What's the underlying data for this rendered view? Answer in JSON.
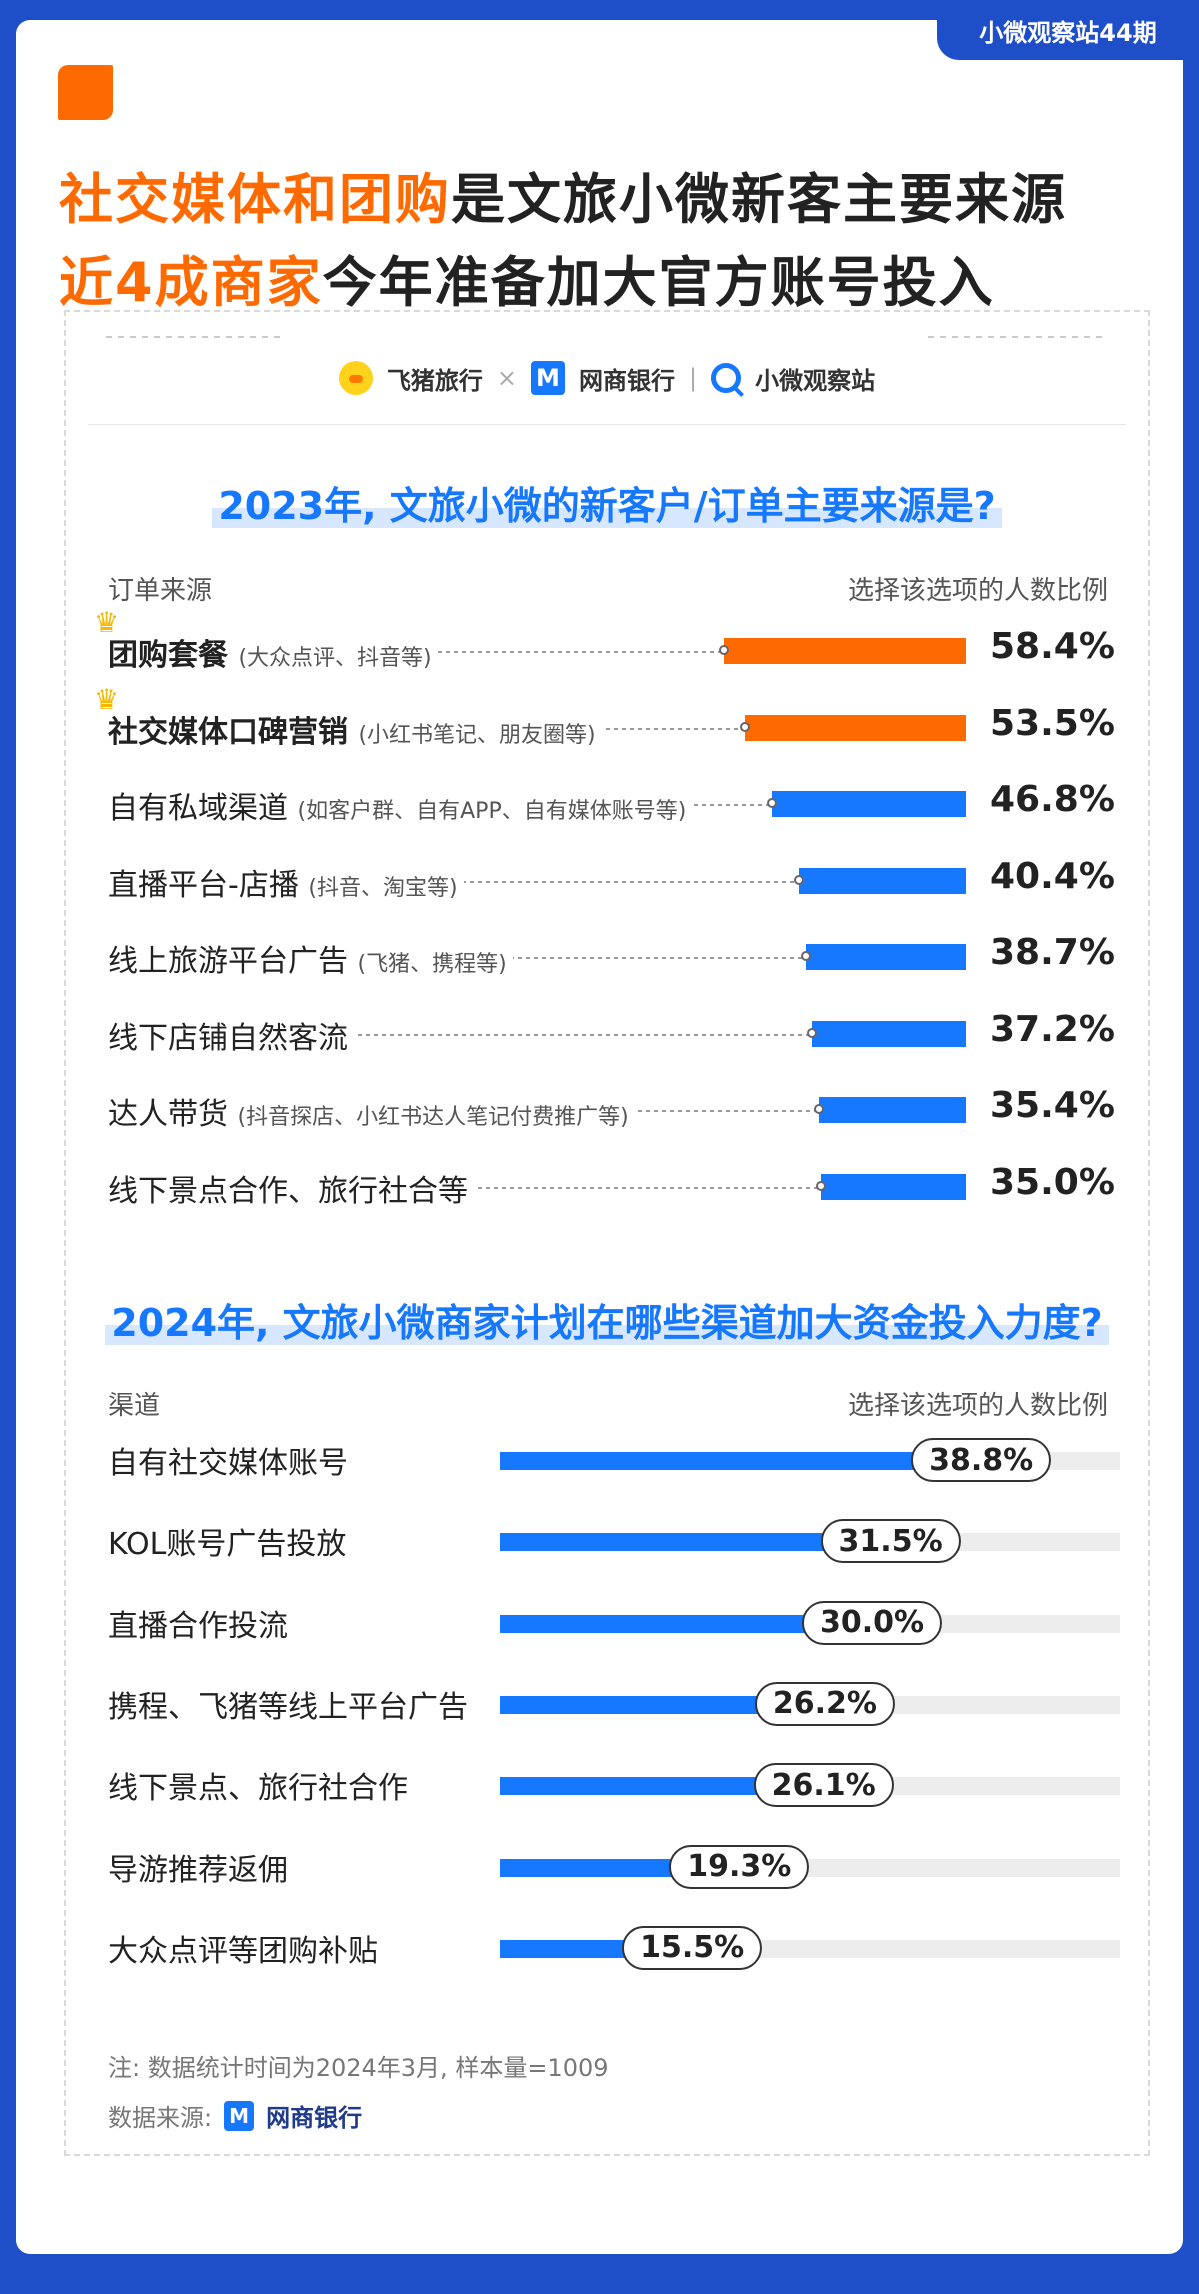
{
  "issue_tag": "小微观察站44期",
  "headline": {
    "line1_highlight": "社交媒体和团购",
    "line1_rest": "是文旅小微新客主要来源",
    "line2_highlight": "近4成商家",
    "line2_rest": "今年准备加大官方账号投入"
  },
  "logos": {
    "fliggy": "飞猪旅行",
    "times": "×",
    "mybank": "网商银行",
    "observer": "小微观察站",
    "separator": "|"
  },
  "colors": {
    "orange": "#ff6a00",
    "blue": "#1677ff",
    "navy": "#1f4fc8",
    "track": "#ededed"
  },
  "chart_data": [
    {
      "type": "bar",
      "title": "2023年, 文旅小微的新客户/订单主要来源是?",
      "xlabel": "选择该选项的人数比例",
      "ylabel": "订单来源",
      "categories": [
        {
          "label": "团购套餐",
          "note": "(大众点评、抖音等)",
          "highlight": true
        },
        {
          "label": "社交媒体口碑营销",
          "note": "(小红书笔记、朋友圈等)",
          "highlight": true
        },
        {
          "label": "自有私域渠道",
          "note": "(如客户群、自有APP、自有媒体账号等)",
          "highlight": false
        },
        {
          "label": "直播平台-店播",
          "note": "(抖音、淘宝等)",
          "highlight": false
        },
        {
          "label": "线上旅游平台广告",
          "note": "(飞猪、携程等)",
          "highlight": false
        },
        {
          "label": "线下店铺自然客流",
          "note": "",
          "highlight": false
        },
        {
          "label": "达人带货",
          "note": "(抖音探店、小红书达人笔记付费推广等)",
          "highlight": false
        },
        {
          "label": "线下景点合作、旅行社合等",
          "note": "",
          "highlight": false
        }
      ],
      "values": [
        58.4,
        53.5,
        46.8,
        40.4,
        38.7,
        37.2,
        35.4,
        35.0
      ],
      "value_labels": [
        "58.4%",
        "53.5%",
        "46.8%",
        "40.4%",
        "38.7%",
        "37.2%",
        "35.4%",
        "35.0%"
      ]
    },
    {
      "type": "bar",
      "title": "2024年, 文旅小微商家计划在哪些渠道加大资金投入力度?",
      "xlabel": "选择该选项的人数比例",
      "ylabel": "渠道",
      "categories": [
        "自有社交媒体账号",
        "KOL账号广告投放",
        "直播合作投流",
        "携程、飞猪等线上平台广告",
        "线下景点、旅行社合作",
        "导游推荐返佣",
        "大众点评等团购补贴"
      ],
      "values": [
        38.8,
        31.5,
        30.0,
        26.2,
        26.1,
        19.3,
        15.5
      ],
      "value_labels": [
        "38.8%",
        "31.5%",
        "30.0%",
        "26.2%",
        "26.1%",
        "19.3%",
        "15.5%"
      ]
    }
  ],
  "footer": {
    "note": "注: 数据统计时间为2024年3月, 样本量=1009",
    "source_label": "数据来源:",
    "source_name": "网商银行"
  }
}
